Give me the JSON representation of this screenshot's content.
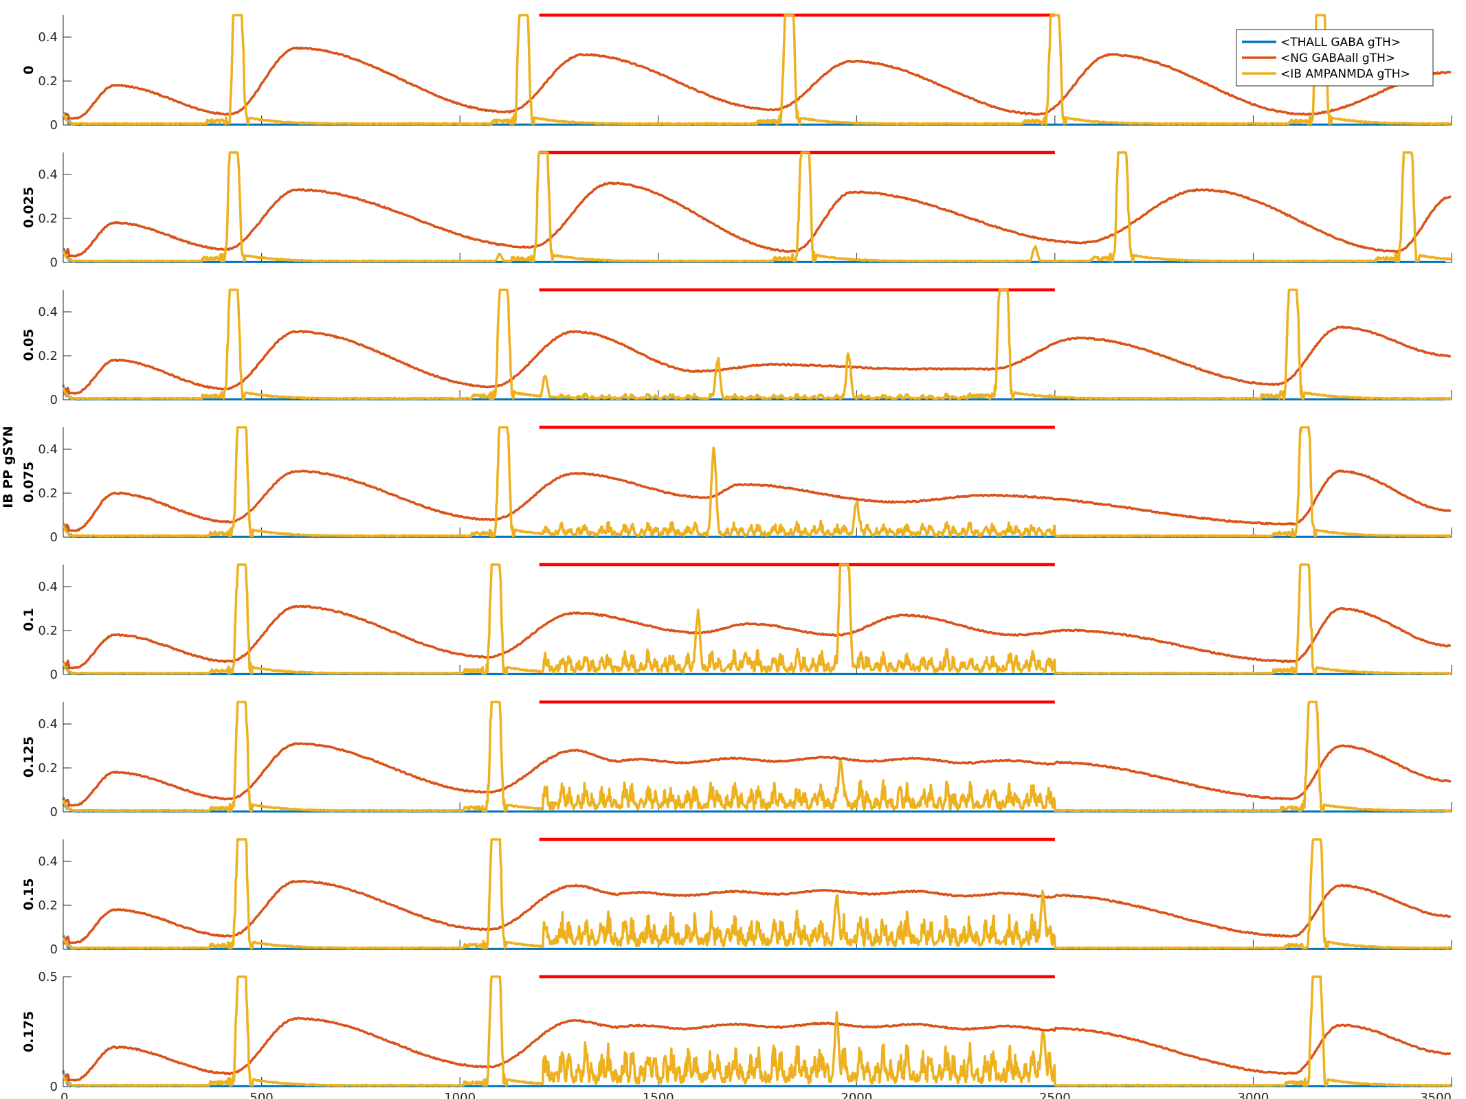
{
  "figure": {
    "shared_ylabel": "IB PP gSYN",
    "xticks": [
      "0",
      "500",
      "1000",
      "1500",
      "2000",
      "2500",
      "3000",
      "3500"
    ]
  },
  "colors": {
    "thall": "#0072BD",
    "ng": "#D95319",
    "ib": "#EDB120",
    "stim": "#FF0000",
    "axis": "#262626"
  },
  "legend": {
    "placement": "top-right of first panel",
    "entries": [
      "<THALL GABA gTH>",
      "<NG GABAall gTH>",
      "<IB AMPANMDA gTH>"
    ]
  },
  "chart_data": {
    "type": "line",
    "xlim": [
      0,
      3500
    ],
    "stimulus_interval": [
      1200,
      2500
    ],
    "stimulus_level": 0.5,
    "series_names": [
      "<THALL GABA gTH>",
      "<NG GABAall gTH>",
      "<IB AMPANMDA gTH>"
    ],
    "panels": [
      {
        "label": "0",
        "ylim": [
          0,
          0.5
        ],
        "yticks": [
          "0",
          "0.2",
          "0.4"
        ],
        "ib_bursts": [
          440,
          1160,
          1830,
          2500,
          3170
        ],
        "ng_peaks": [
          [
            130,
            0.18
          ],
          [
            590,
            0.35
          ],
          [
            1310,
            0.32
          ],
          [
            1990,
            0.29
          ],
          [
            2640,
            0.32
          ]
        ],
        "ng_troughs": [
          [
            30,
            0.03
          ],
          [
            420,
            0.05
          ],
          [
            1120,
            0.06
          ],
          [
            1790,
            0.07
          ],
          [
            2460,
            0.05
          ],
          [
            3130,
            0.05
          ]
        ],
        "ng_plateau": null,
        "ng_end": 0.24,
        "ib_noise_level": 0,
        "ib_events": []
      },
      {
        "label": "0.025",
        "ylim": [
          0,
          0.5
        ],
        "yticks": [
          "0",
          "0.2",
          "0.4"
        ],
        "ib_bursts": [
          430,
          1210,
          1870,
          2670,
          3390
        ],
        "ng_peaks": [
          [
            130,
            0.18
          ],
          [
            590,
            0.33
          ],
          [
            1380,
            0.36
          ],
          [
            1990,
            0.32
          ],
          [
            2870,
            0.33
          ]
        ],
        "ng_troughs": [
          [
            30,
            0.03
          ],
          [
            410,
            0.06
          ],
          [
            1180,
            0.07
          ],
          [
            1840,
            0.05
          ],
          [
            2570,
            0.09
          ],
          [
            3360,
            0.05
          ]
        ],
        "ng_plateau": null,
        "ng_end": 0.3,
        "ib_noise_level": 0,
        "ib_events": [
          [
            1100,
            0.04
          ],
          [
            2450,
            0.08
          ]
        ]
      },
      {
        "label": "0.05",
        "ylim": [
          0,
          0.5
        ],
        "yticks": [
          "0",
          "0.2",
          "0.4"
        ],
        "ib_bursts": [
          430,
          1110,
          2370,
          3100
        ],
        "ng_peaks": [
          [
            130,
            0.18
          ],
          [
            590,
            0.31
          ],
          [
            1290,
            0.31
          ],
          [
            1790,
            0.16
          ],
          [
            2560,
            0.28
          ],
          [
            3220,
            0.33
          ]
        ],
        "ng_troughs": [
          [
            30,
            0.03
          ],
          [
            410,
            0.05
          ],
          [
            1080,
            0.06
          ],
          [
            1600,
            0.13
          ],
          [
            2150,
            0.14
          ],
          [
            2340,
            0.14
          ],
          [
            3060,
            0.07
          ]
        ],
        "ng_plateau": null,
        "ng_end": 0.2,
        "ib_noise_level": 0.02,
        "ib_events": [
          [
            1650,
            0.2
          ],
          [
            1980,
            0.23
          ],
          [
            1215,
            0.12
          ]
        ]
      },
      {
        "label": "0.075",
        "ylim": [
          0,
          0.5
        ],
        "yticks": [
          "0",
          "0.2",
          "0.4"
        ],
        "ib_bursts": [
          450,
          1110,
          3130
        ],
        "ng_peaks": [
          [
            130,
            0.2
          ],
          [
            590,
            0.3
          ],
          [
            1290,
            0.29
          ],
          [
            1710,
            0.24
          ],
          [
            2330,
            0.19
          ],
          [
            3220,
            0.3
          ]
        ],
        "ng_troughs": [
          [
            30,
            0.03
          ],
          [
            420,
            0.07
          ],
          [
            1080,
            0.08
          ],
          [
            1620,
            0.18
          ],
          [
            2100,
            0.16
          ],
          [
            3100,
            0.06
          ]
        ],
        "ng_plateau": null,
        "ng_end": 0.12,
        "ib_noise_level": 0.05,
        "ib_events": [
          [
            1640,
            0.46
          ],
          [
            2000,
            0.18
          ]
        ]
      },
      {
        "label": "0.1",
        "ylim": [
          0,
          0.5
        ],
        "yticks": [
          "0",
          "0.2",
          "0.4"
        ],
        "ib_bursts": [
          450,
          1090,
          1970,
          3130
        ],
        "ng_peaks": [
          [
            130,
            0.18
          ],
          [
            590,
            0.31
          ],
          [
            1290,
            0.28
          ],
          [
            1730,
            0.23
          ],
          [
            2120,
            0.27
          ],
          [
            2540,
            0.2
          ],
          [
            3220,
            0.3
          ]
        ],
        "ng_troughs": [
          [
            30,
            0.03
          ],
          [
            420,
            0.06
          ],
          [
            1070,
            0.08
          ],
          [
            1600,
            0.19
          ],
          [
            1950,
            0.18
          ],
          [
            2400,
            0.18
          ],
          [
            3100,
            0.06
          ]
        ],
        "ng_plateau": null,
        "ng_end": 0.13,
        "ib_noise_level": 0.08,
        "ib_events": [
          [
            1600,
            0.3
          ],
          [
            1720,
            0.1
          ]
        ]
      },
      {
        "label": "0.125",
        "ylim": [
          0,
          0.5
        ],
        "yticks": [
          "0",
          "0.2",
          "0.4"
        ],
        "ib_bursts": [
          450,
          1090,
          3150
        ],
        "ng_peaks": [
          [
            130,
            0.18
          ],
          [
            590,
            0.31
          ],
          [
            1290,
            0.28
          ],
          [
            3220,
            0.3
          ]
        ],
        "ng_troughs": [
          [
            30,
            0.03
          ],
          [
            420,
            0.06
          ],
          [
            1070,
            0.09
          ],
          [
            3100,
            0.06
          ]
        ],
        "ng_plateau": [
          1400,
          2500,
          0.23
        ],
        "ng_end": 0.14,
        "ib_noise_level": 0.1,
        "ib_events": [
          [
            1960,
            0.26
          ]
        ]
      },
      {
        "label": "0.15",
        "ylim": [
          0,
          0.5
        ],
        "yticks": [
          "0",
          "0.2",
          "0.4"
        ],
        "ib_bursts": [
          450,
          1090,
          3160
        ],
        "ng_peaks": [
          [
            130,
            0.18
          ],
          [
            590,
            0.31
          ],
          [
            1290,
            0.29
          ],
          [
            3220,
            0.29
          ]
        ],
        "ng_troughs": [
          [
            30,
            0.03
          ],
          [
            420,
            0.06
          ],
          [
            1070,
            0.09
          ],
          [
            3100,
            0.06
          ]
        ],
        "ng_plateau": [
          1400,
          2500,
          0.25
        ],
        "ng_end": 0.15,
        "ib_noise_level": 0.12,
        "ib_events": [
          [
            1950,
            0.26
          ],
          [
            2470,
            0.27
          ]
        ]
      },
      {
        "label": "0.175",
        "ylim": [
          0,
          0.5
        ],
        "yticks": [
          "0",
          "0.5"
        ],
        "ib_bursts": [
          450,
          1090,
          3160
        ],
        "ng_peaks": [
          [
            130,
            0.18
          ],
          [
            590,
            0.31
          ],
          [
            1290,
            0.3
          ],
          [
            3220,
            0.28
          ]
        ],
        "ng_troughs": [
          [
            30,
            0.03
          ],
          [
            420,
            0.06
          ],
          [
            1070,
            0.09
          ],
          [
            3100,
            0.06
          ]
        ],
        "ng_plateau": [
          1400,
          2500,
          0.27
        ],
        "ng_end": 0.15,
        "ib_noise_level": 0.14,
        "ib_events": [
          [
            1950,
            0.34
          ],
          [
            2470,
            0.28
          ]
        ]
      }
    ]
  }
}
